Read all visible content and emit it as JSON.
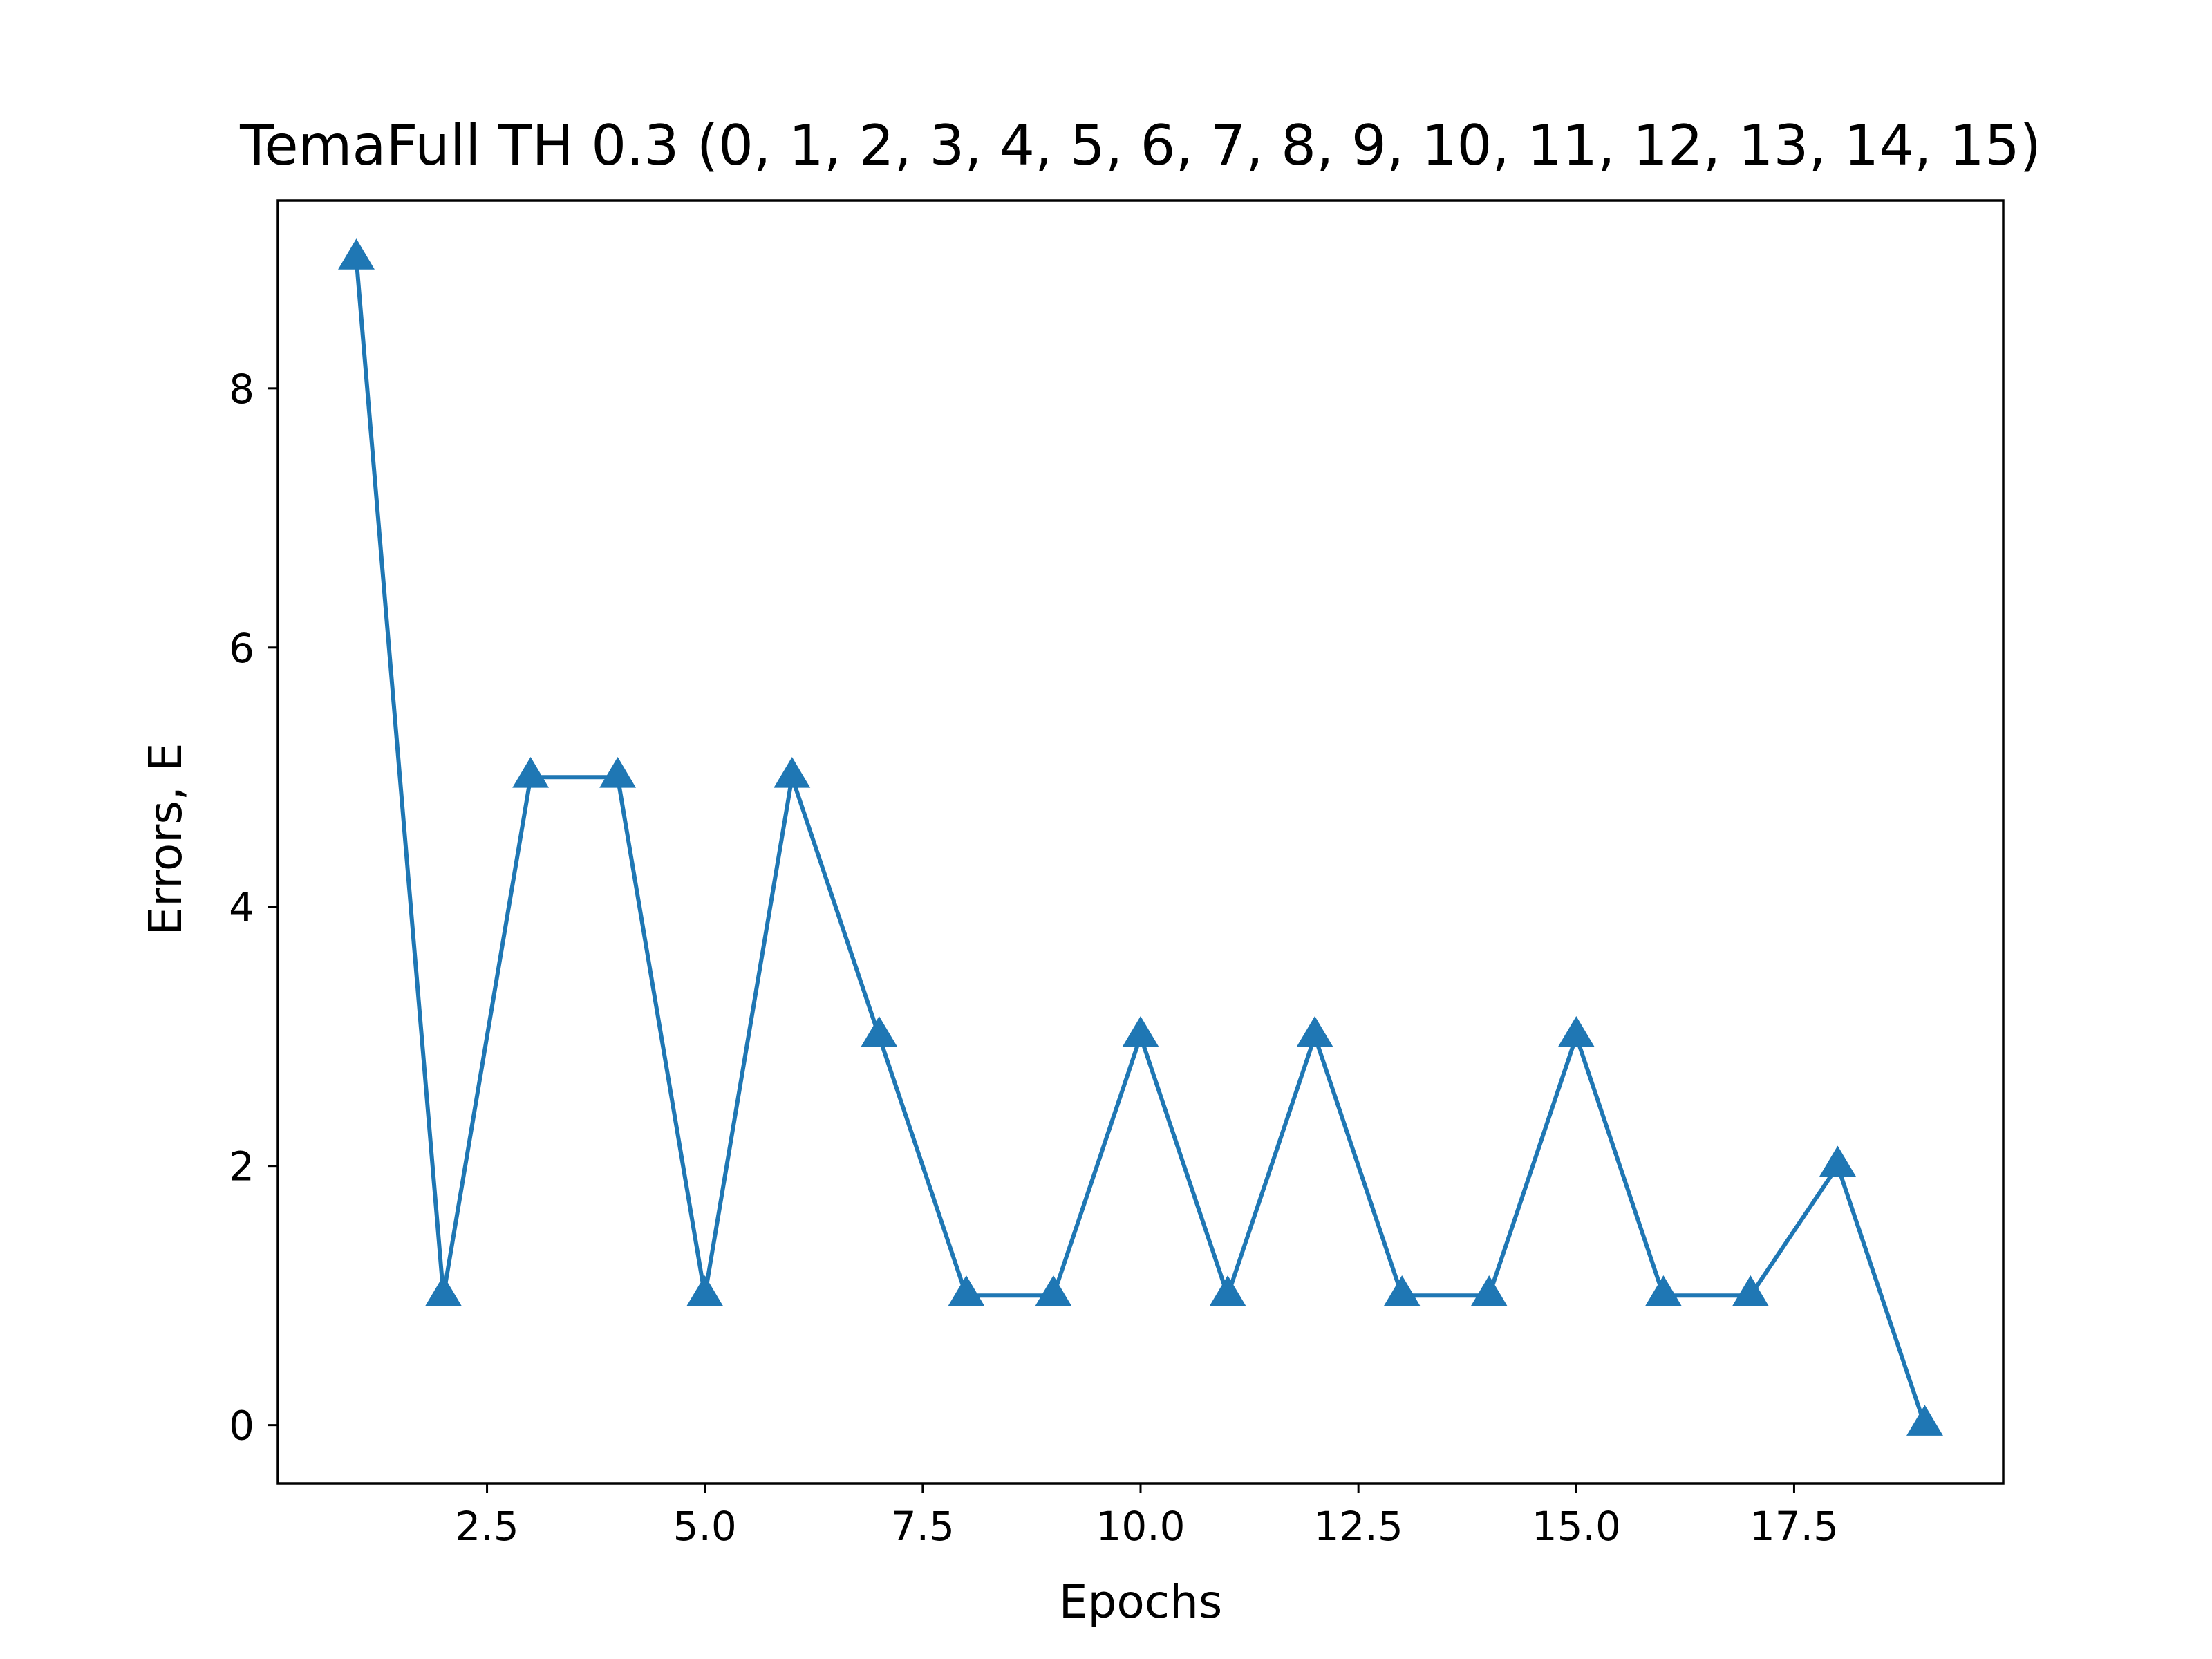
{
  "chart_data": {
    "type": "line",
    "title": "TemaFull TH 0.3 (0, 1, 2, 3, 4, 5, 6, 7, 8, 9, 10, 11, 12, 13, 14, 15)",
    "xlabel": "Epochs",
    "ylabel": "Errors, E",
    "x": [
      1,
      2,
      3,
      4,
      5,
      6,
      7,
      8,
      9,
      10,
      11,
      12,
      13,
      14,
      15,
      16,
      17,
      18,
      19
    ],
    "series": [
      {
        "values": [
          9,
          1,
          5,
          5,
          1,
          5,
          3,
          1,
          1,
          3,
          1,
          3,
          1,
          1,
          3,
          1,
          1,
          2,
          0
        ],
        "color": "#1f77b4",
        "marker": "triangle-up"
      }
    ],
    "xlim": [
      0.1,
      19.9
    ],
    "ylim": [
      -0.45,
      9.45
    ],
    "xticks": [
      2.5,
      5.0,
      7.5,
      10.0,
      12.5,
      15.0,
      17.5
    ],
    "xtick_labels": [
      "2.5",
      "5.0",
      "7.5",
      "10.0",
      "12.5",
      "15.0",
      "17.5"
    ],
    "yticks": [
      0,
      2,
      4,
      6,
      8
    ],
    "ytick_labels": [
      "0",
      "2",
      "4",
      "6",
      "8"
    ],
    "grid": false,
    "legend": "none"
  }
}
